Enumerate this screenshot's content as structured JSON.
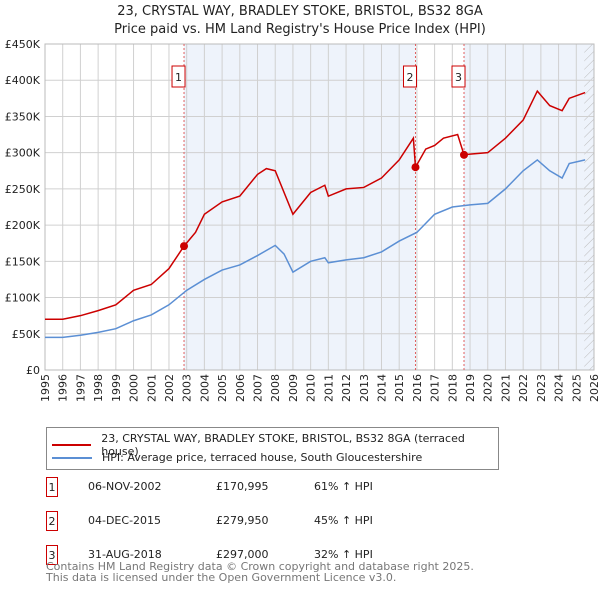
{
  "chart_data": {
    "type": "line",
    "title": "23, CRYSTAL WAY, BRADLEY STOKE, BRISTOL, BS32 8GA",
    "subtitle": "Price paid vs. HM Land Registry's House Price Index (HPI)",
    "xlim": [
      1995,
      2026
    ],
    "ylim": [
      0,
      450000
    ],
    "yticks": [
      0,
      50000,
      100000,
      150000,
      200000,
      250000,
      300000,
      350000,
      400000,
      450000
    ],
    "ytick_labels": [
      "£0",
      "£50K",
      "£100K",
      "£150K",
      "£200K",
      "£250K",
      "£300K",
      "£350K",
      "£400K",
      "£450K"
    ],
    "xticks": [
      1995,
      1996,
      1997,
      1998,
      1999,
      2000,
      2001,
      2002,
      2003,
      2004,
      2005,
      2006,
      2007,
      2008,
      2009,
      2010,
      2011,
      2012,
      2013,
      2014,
      2015,
      2016,
      2017,
      2018,
      2019,
      2020,
      2021,
      2022,
      2023,
      2024,
      2025,
      2026
    ],
    "series": [
      {
        "name": "23, CRYSTAL WAY, BRADLEY STOKE, BRISTOL, BS32 8GA (terraced house)",
        "color": "#cc0000",
        "x": [
          1995,
          1996,
          1997,
          1998,
          1999,
          2000,
          2001,
          2002,
          2002.85,
          2003.5,
          2004,
          2005,
          2006,
          2007,
          2007.5,
          2008,
          2009,
          2010,
          2010.8,
          2011,
          2012,
          2013,
          2014,
          2015,
          2015.8,
          2015.92,
          2016.5,
          2017,
          2017.5,
          2018.3,
          2018.66,
          2019,
          2020,
          2021,
          2022,
          2022.8,
          2023.5,
          2024.2,
          2024.6,
          2025.5
        ],
        "y": [
          70000,
          70000,
          75000,
          82000,
          90000,
          110000,
          118000,
          140000,
          170995,
          190000,
          215000,
          232000,
          240000,
          270000,
          278000,
          275000,
          215000,
          245000,
          255000,
          240000,
          250000,
          252000,
          265000,
          290000,
          320000,
          279950,
          305000,
          310000,
          320000,
          325000,
          297000,
          298000,
          300000,
          320000,
          345000,
          385000,
          365000,
          358000,
          375000,
          383000
        ]
      },
      {
        "name": "HPI: Average price, terraced house, South Gloucestershire",
        "color": "#5b8fd4",
        "x": [
          1995,
          1996,
          1997,
          1998,
          1999,
          2000,
          2001,
          2002,
          2003,
          2004,
          2005,
          2006,
          2007,
          2008,
          2008.5,
          2009,
          2010,
          2010.8,
          2011,
          2012,
          2013,
          2014,
          2015,
          2016,
          2017,
          2018,
          2019,
          2020,
          2021,
          2022,
          2022.8,
          2023.5,
          2024.2,
          2024.6,
          2025.5
        ],
        "y": [
          45000,
          45000,
          48000,
          52000,
          57000,
          68000,
          76000,
          90000,
          110000,
          125000,
          138000,
          145000,
          158000,
          172000,
          160000,
          135000,
          150000,
          155000,
          148000,
          152000,
          155000,
          163000,
          178000,
          190000,
          215000,
          225000,
          228000,
          230000,
          250000,
          275000,
          290000,
          275000,
          265000,
          285000,
          290000
        ]
      }
    ],
    "sales": [
      {
        "n": "1",
        "x": 2002.85,
        "y": 170995,
        "date": "06-NOV-2002",
        "price": "£170,995",
        "hpi": "61% ↑ HPI"
      },
      {
        "n": "2",
        "x": 2015.92,
        "y": 279950,
        "date": "04-DEC-2015",
        "price": "£279,950",
        "hpi": "45% ↑ HPI"
      },
      {
        "n": "3",
        "x": 2018.66,
        "y": 297000,
        "date": "31-AUG-2018",
        "price": "£297,000",
        "hpi": "32% ↑ HPI"
      }
    ],
    "legend": "below"
  },
  "footer": {
    "line1": "Contains HM Land Registry data © Crown copyright and database right 2025.",
    "line2": "This data is licensed under the Open Government Licence v3.0."
  }
}
